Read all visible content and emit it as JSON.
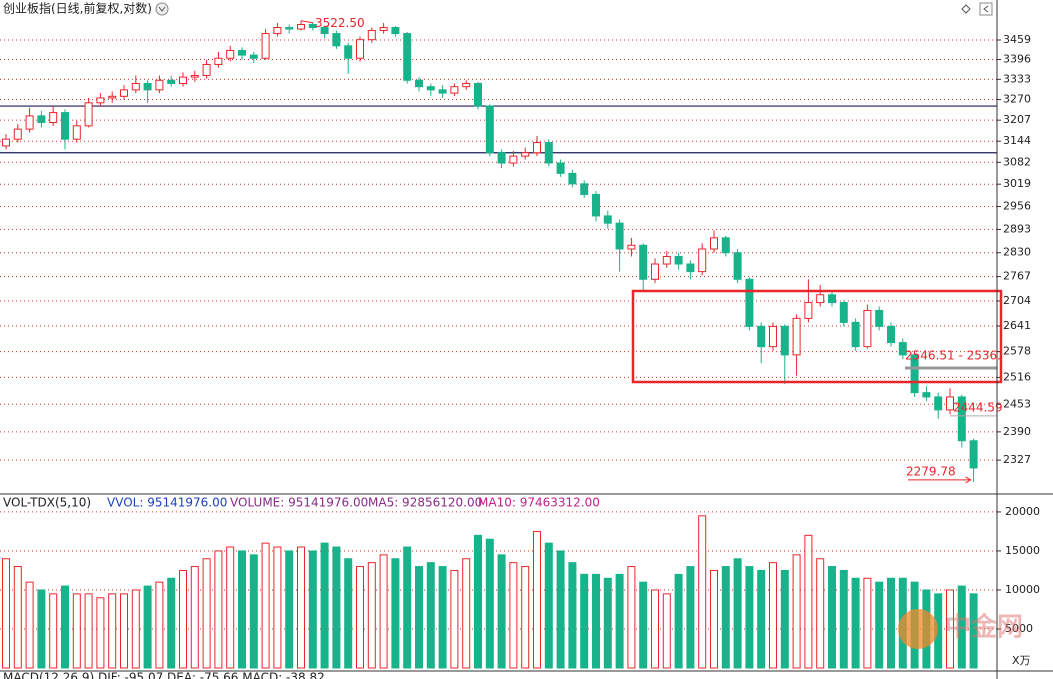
{
  "chart_data": {
    "type": "candlestick",
    "title": "创业板指(日线,前复权,对数)",
    "log_scale": true,
    "grid": true,
    "up_color": "#e8262b",
    "down_color": "#19b38b",
    "ylim": [
      2256,
      3592
    ],
    "yticks": [
      3459,
      3396,
      3333,
      3270,
      3207,
      3144,
      3082,
      3019,
      2956,
      2893,
      2830,
      2767,
      2704,
      2641,
      2578,
      2516,
      2453,
      2390,
      2327
    ],
    "price_lines": [
      3250,
      3110
    ],
    "price_line_color": "#1c1c5a",
    "annotations": [
      {
        "value": 3522.5,
        "label": "3522.50"
      },
      {
        "value": 2444.59,
        "label": "2444.59"
      },
      {
        "value": 2279.78,
        "label": "2279.78"
      }
    ],
    "range_label": "2546.51 - 2536.",
    "candles": [
      [
        3130,
        3165,
        3120,
        3150
      ],
      [
        3150,
        3195,
        3140,
        3180
      ],
      [
        3180,
        3245,
        3170,
        3220
      ],
      [
        3220,
        3235,
        3185,
        3200
      ],
      [
        3200,
        3250,
        3190,
        3230
      ],
      [
        3230,
        3240,
        3120,
        3150
      ],
      [
        3150,
        3205,
        3140,
        3190
      ],
      [
        3190,
        3275,
        3185,
        3260
      ],
      [
        3260,
        3290,
        3250,
        3275
      ],
      [
        3275,
        3295,
        3260,
        3280
      ],
      [
        3280,
        3315,
        3270,
        3300
      ],
      [
        3300,
        3345,
        3290,
        3320
      ],
      [
        3320,
        3330,
        3260,
        3300
      ],
      [
        3300,
        3345,
        3290,
        3330
      ],
      [
        3330,
        3345,
        3310,
        3320
      ],
      [
        3320,
        3355,
        3310,
        3340
      ],
      [
        3340,
        3360,
        3325,
        3345
      ],
      [
        3345,
        3395,
        3335,
        3380
      ],
      [
        3380,
        3420,
        3370,
        3400
      ],
      [
        3400,
        3440,
        3390,
        3425
      ],
      [
        3425,
        3435,
        3395,
        3410
      ],
      [
        3410,
        3420,
        3385,
        3400
      ],
      [
        3400,
        3495,
        3395,
        3480
      ],
      [
        3480,
        3515,
        3470,
        3500
      ],
      [
        3500,
        3510,
        3480,
        3495
      ],
      [
        3495,
        3522.5,
        3490,
        3510
      ],
      [
        3510,
        3518,
        3490,
        3500
      ],
      [
        3500,
        3505,
        3465,
        3480
      ],
      [
        3480,
        3490,
        3430,
        3440
      ],
      [
        3440,
        3450,
        3350,
        3400
      ],
      [
        3400,
        3470,
        3390,
        3460
      ],
      [
        3460,
        3500,
        3450,
        3490
      ],
      [
        3490,
        3515,
        3480,
        3500
      ],
      [
        3500,
        3505,
        3470,
        3480
      ],
      [
        3480,
        3485,
        3320,
        3330
      ],
      [
        3330,
        3340,
        3295,
        3310
      ],
      [
        3310,
        3320,
        3280,
        3300
      ],
      [
        3300,
        3315,
        3275,
        3290
      ],
      [
        3290,
        3320,
        3280,
        3310
      ],
      [
        3310,
        3330,
        3300,
        3320
      ],
      [
        3320,
        3325,
        3240,
        3250
      ],
      [
        3250,
        3255,
        3100,
        3110
      ],
      [
        3110,
        3120,
        3065,
        3080
      ],
      [
        3080,
        3115,
        3070,
        3100
      ],
      [
        3100,
        3125,
        3090,
        3110
      ],
      [
        3110,
        3160,
        3100,
        3140
      ],
      [
        3140,
        3150,
        3070,
        3080
      ],
      [
        3080,
        3090,
        3040,
        3050
      ],
      [
        3050,
        3060,
        3010,
        3020
      ],
      [
        3020,
        3030,
        2980,
        2990
      ],
      [
        2990,
        3000,
        2915,
        2930
      ],
      [
        2930,
        2945,
        2895,
        2910
      ],
      [
        2910,
        2920,
        2780,
        2840
      ],
      [
        2840,
        2870,
        2820,
        2850
      ],
      [
        2850,
        2855,
        2730,
        2760
      ],
      [
        2760,
        2815,
        2750,
        2800
      ],
      [
        2800,
        2835,
        2790,
        2820
      ],
      [
        2820,
        2830,
        2785,
        2800
      ],
      [
        2800,
        2810,
        2760,
        2780
      ],
      [
        2780,
        2855,
        2770,
        2840
      ],
      [
        2840,
        2890,
        2830,
        2870
      ],
      [
        2870,
        2875,
        2820,
        2830
      ],
      [
        2830,
        2840,
        2750,
        2760
      ],
      [
        2760,
        2765,
        2630,
        2640
      ],
      [
        2640,
        2650,
        2550,
        2590
      ],
      [
        2590,
        2650,
        2580,
        2640
      ],
      [
        2640,
        2645,
        2500,
        2570
      ],
      [
        2570,
        2670,
        2520,
        2660
      ],
      [
        2660,
        2760,
        2650,
        2700
      ],
      [
        2700,
        2745,
        2690,
        2720
      ],
      [
        2720,
        2730,
        2690,
        2700
      ],
      [
        2700,
        2705,
        2640,
        2650
      ],
      [
        2650,
        2660,
        2580,
        2590
      ],
      [
        2590,
        2695,
        2585,
        2680
      ],
      [
        2680,
        2690,
        2630,
        2640
      ],
      [
        2640,
        2650,
        2590,
        2600
      ],
      [
        2600,
        2610,
        2560,
        2570
      ],
      [
        2570,
        2575,
        2470,
        2480
      ],
      [
        2480,
        2495,
        2460,
        2470
      ],
      [
        2470,
        2480,
        2420,
        2440
      ],
      [
        2440,
        2490,
        2430,
        2470
      ],
      [
        2470,
        2475,
        2355,
        2370
      ],
      [
        2370,
        2375,
        2279.78,
        2310
      ]
    ],
    "volume": {
      "header": "VOL-TDX(5,10)",
      "vvol": "VVOL: 95141976.00",
      "volume_label": "VOLUME: 95141976.00",
      "ma5": "MA5: 92856120.00",
      "ma10": "MA10: 97463312.00",
      "unit": "X万",
      "ylim": [
        0,
        21400
      ],
      "yticks": [
        20000,
        15000,
        10000,
        5000
      ],
      "values": [
        14000,
        13000,
        11000,
        10000,
        9500,
        10500,
        9500,
        9500,
        9000,
        9500,
        9500,
        10000,
        10500,
        11000,
        11500,
        12500,
        13000,
        14000,
        15000,
        15500,
        15000,
        14500,
        16000,
        15500,
        15000,
        15500,
        15000,
        16000,
        15500,
        14000,
        13000,
        13500,
        14500,
        14000,
        15500,
        13000,
        13500,
        13000,
        12500,
        14000,
        17000,
        16500,
        14500,
        13500,
        13000,
        17500,
        16000,
        15000,
        13500,
        12000,
        12000,
        11500,
        12000,
        13000,
        11000,
        10000,
        9500,
        12000,
        13000,
        19500,
        12500,
        13000,
        14000,
        13000,
        12500,
        13500,
        12500,
        14500,
        17000,
        14000,
        13000,
        12500,
        11500,
        11500,
        11000,
        11500,
        11500,
        11000,
        10000,
        9500,
        10000,
        10500,
        9500
      ]
    },
    "macd_header": "MACD(12,26,9)  DIF: -95.07  DEA: -75.66  MACD: -38.82",
    "watermark": "中金网"
  }
}
